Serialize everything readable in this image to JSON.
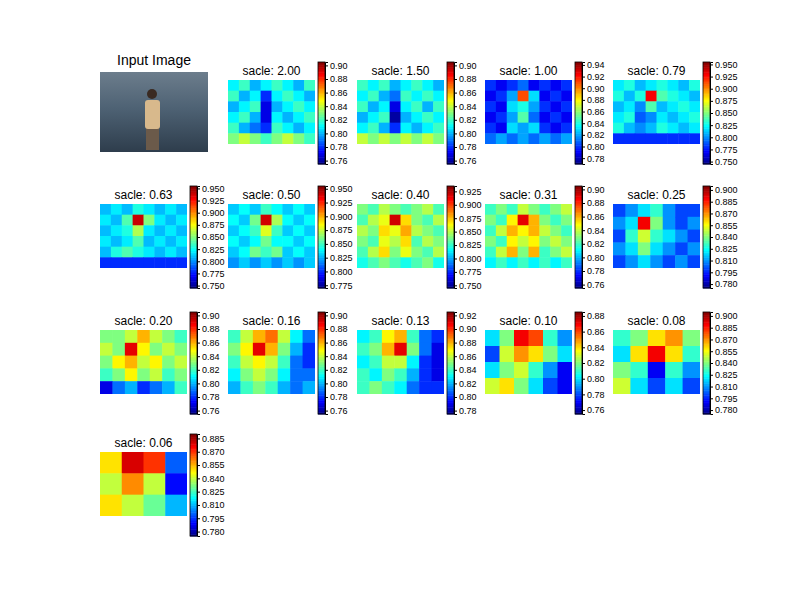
{
  "chart_data": [
    {
      "type": "image",
      "title": "Input Image"
    },
    {
      "type": "heatmap",
      "title": "sacle: 2.00",
      "cells": [
        [
          0.81,
          0.82,
          0.8,
          0.81,
          0.82,
          0.81,
          0.8,
          0.82
        ],
        [
          0.82,
          0.8,
          0.81,
          0.78,
          0.81,
          0.82,
          0.81,
          0.8
        ],
        [
          0.8,
          0.81,
          0.82,
          0.77,
          0.8,
          0.81,
          0.82,
          0.81
        ],
        [
          0.81,
          0.82,
          0.8,
          0.77,
          0.81,
          0.8,
          0.81,
          0.82
        ],
        [
          0.82,
          0.8,
          0.79,
          0.78,
          0.82,
          0.81,
          0.8,
          0.81
        ],
        [
          0.83,
          0.84,
          0.83,
          0.82,
          0.83,
          0.84,
          0.83,
          0.82
        ]
      ],
      "zlim": [
        0.755,
        0.905
      ],
      "zticks": [
        0.76,
        0.78,
        {
          "value": 0.8,
          "label": "0.80"
        },
        0.82,
        0.84,
        0.86,
        0.88,
        {
          "value": 0.9,
          "label": "0.90"
        }
      ]
    },
    {
      "type": "heatmap",
      "title": "sacle: 1.50",
      "cells": [
        [
          0.82,
          0.81,
          0.82,
          0.8,
          0.81,
          0.82,
          0.81,
          0.8
        ],
        [
          0.81,
          0.82,
          0.8,
          0.79,
          0.82,
          0.81,
          0.82,
          0.81
        ],
        [
          0.82,
          0.8,
          0.81,
          0.77,
          0.81,
          0.82,
          0.8,
          0.82
        ],
        [
          0.8,
          0.81,
          0.82,
          0.76,
          0.8,
          0.81,
          0.82,
          0.81
        ],
        [
          0.81,
          0.82,
          0.8,
          0.78,
          0.81,
          0.8,
          0.81,
          0.82
        ],
        [
          0.84,
          0.83,
          0.84,
          0.83,
          0.84,
          0.83,
          0.84,
          0.83
        ]
      ],
      "zlim": [
        0.755,
        0.905
      ],
      "zticks": [
        0.76,
        0.78,
        {
          "value": 0.8,
          "label": "0.80"
        },
        0.82,
        0.84,
        0.86,
        0.88,
        {
          "value": 0.9,
          "label": "0.90"
        }
      ]
    },
    {
      "type": "heatmap",
      "title": "sacle: 1.00",
      "cells": [
        [
          0.8,
          0.79,
          0.8,
          0.81,
          0.79,
          0.8,
          0.79,
          0.8
        ],
        [
          0.79,
          0.8,
          0.82,
          0.91,
          0.83,
          0.79,
          0.8,
          0.79
        ],
        [
          0.8,
          0.79,
          0.83,
          0.84,
          0.82,
          0.8,
          0.79,
          0.8
        ],
        [
          0.79,
          0.8,
          0.82,
          0.85,
          0.81,
          0.79,
          0.8,
          0.79
        ],
        [
          0.8,
          0.79,
          0.83,
          0.82,
          0.83,
          0.8,
          0.79,
          0.8
        ],
        [
          0.81,
          0.82,
          0.81,
          0.82,
          0.81,
          0.82,
          0.81,
          0.82
        ]
      ],
      "zlim": [
        0.77,
        0.945
      ],
      "zticks": [
        0.78,
        {
          "value": 0.8,
          "label": "0.80"
        },
        0.82,
        0.84,
        0.86,
        0.88,
        {
          "value": 0.9,
          "label": "0.90"
        },
        0.92,
        0.94
      ]
    },
    {
      "type": "heatmap",
      "title": "sacle: 0.79",
      "cells": [
        [
          0.82,
          0.83,
          0.81,
          0.82,
          0.83,
          0.82,
          0.81,
          0.83
        ],
        [
          0.83,
          0.81,
          0.83,
          0.93,
          0.84,
          0.83,
          0.82,
          0.81
        ],
        [
          0.81,
          0.82,
          0.8,
          0.84,
          0.81,
          0.82,
          0.83,
          0.82
        ],
        [
          0.82,
          0.83,
          0.79,
          0.8,
          0.82,
          0.81,
          0.82,
          0.83
        ],
        [
          0.83,
          0.81,
          0.8,
          0.81,
          0.83,
          0.82,
          0.81,
          0.82
        ],
        [
          0.78,
          0.78,
          0.78,
          0.78,
          0.78,
          0.78,
          0.78,
          0.78
        ]
      ],
      "zlim": [
        0.745,
        0.955
      ],
      "zticks": [
        {
          "value": 0.75,
          "label": "0.750"
        },
        0.775,
        {
          "value": 0.8,
          "label": "0.800"
        },
        0.825,
        {
          "value": 0.85,
          "label": "0.850"
        },
        0.875,
        {
          "value": 0.9,
          "label": "0.900"
        },
        0.925,
        {
          "value": 0.95,
          "label": "0.950"
        }
      ]
    },
    {
      "type": "heatmap",
      "title": "sacle: 0.63",
      "cells": [
        [
          0.81,
          0.82,
          0.81,
          0.83,
          0.82,
          0.81,
          0.82,
          0.81
        ],
        [
          0.82,
          0.81,
          0.84,
          0.94,
          0.85,
          0.82,
          0.81,
          0.82
        ],
        [
          0.81,
          0.82,
          0.83,
          0.86,
          0.82,
          0.81,
          0.82,
          0.81
        ],
        [
          0.82,
          0.81,
          0.82,
          0.84,
          0.81,
          0.82,
          0.81,
          0.82
        ],
        [
          0.81,
          0.83,
          0.84,
          0.83,
          0.82,
          0.81,
          0.82,
          0.81
        ],
        [
          0.78,
          0.78,
          0.78,
          0.78,
          0.78,
          0.78,
          0.78,
          0.78
        ]
      ],
      "zlim": [
        0.745,
        0.955
      ],
      "zticks": [
        {
          "value": 0.75,
          "label": "0.750"
        },
        0.775,
        {
          "value": 0.8,
          "label": "0.800"
        },
        0.825,
        {
          "value": 0.85,
          "label": "0.850"
        },
        0.875,
        {
          "value": 0.9,
          "label": "0.900"
        },
        0.925,
        {
          "value": 0.95,
          "label": "0.950"
        }
      ]
    },
    {
      "type": "heatmap",
      "title": "sacle: 0.50",
      "cells": [
        [
          0.83,
          0.84,
          0.83,
          0.85,
          0.84,
          0.83,
          0.84,
          0.83
        ],
        [
          0.84,
          0.83,
          0.86,
          0.94,
          0.87,
          0.84,
          0.83,
          0.84
        ],
        [
          0.83,
          0.84,
          0.85,
          0.88,
          0.85,
          0.83,
          0.84,
          0.83
        ],
        [
          0.84,
          0.83,
          0.84,
          0.86,
          0.84,
          0.84,
          0.83,
          0.84
        ],
        [
          0.83,
          0.84,
          0.86,
          0.85,
          0.86,
          0.83,
          0.84,
          0.83
        ],
        [
          0.82,
          0.83,
          0.82,
          0.83,
          0.82,
          0.83,
          0.82,
          0.83
        ]
      ],
      "zlim": [
        0.77,
        0.955
      ],
      "zticks": [
        0.775,
        {
          "value": 0.8,
          "label": "0.800"
        },
        0.825,
        {
          "value": 0.85,
          "label": "0.850"
        },
        0.875,
        {
          "value": 0.9,
          "label": "0.900"
        },
        0.925,
        {
          "value": 0.95,
          "label": "0.950"
        }
      ]
    },
    {
      "type": "heatmap",
      "title": "sacle: 0.40",
      "cells": [
        [
          0.84,
          0.83,
          0.85,
          0.84,
          0.83,
          0.84,
          0.85,
          0.83
        ],
        [
          0.83,
          0.85,
          0.86,
          0.92,
          0.87,
          0.84,
          0.83,
          0.85
        ],
        [
          0.85,
          0.84,
          0.87,
          0.86,
          0.88,
          0.85,
          0.84,
          0.83
        ],
        [
          0.84,
          0.83,
          0.86,
          0.85,
          0.87,
          0.83,
          0.85,
          0.84
        ],
        [
          0.83,
          0.85,
          0.87,
          0.84,
          0.86,
          0.84,
          0.83,
          0.85
        ],
        [
          0.82,
          0.83,
          0.84,
          0.83,
          0.82,
          0.83,
          0.84,
          0.82
        ]
      ],
      "zlim": [
        0.745,
        0.935
      ],
      "zticks": [
        {
          "value": 0.75,
          "label": "0.750"
        },
        0.775,
        {
          "value": 0.8,
          "label": "0.800"
        },
        0.825,
        {
          "value": 0.85,
          "label": "0.850"
        },
        0.875,
        {
          "value": 0.9,
          "label": "0.900"
        },
        0.925
      ]
    },
    {
      "type": "heatmap",
      "title": "sacle: 0.31",
      "cells": [
        [
          0.82,
          0.83,
          0.82,
          0.84,
          0.83,
          0.82,
          0.83,
          0.84
        ],
        [
          0.83,
          0.82,
          0.85,
          0.89,
          0.86,
          0.83,
          0.82,
          0.83
        ],
        [
          0.82,
          0.84,
          0.86,
          0.85,
          0.86,
          0.84,
          0.83,
          0.82
        ],
        [
          0.83,
          0.82,
          0.85,
          0.84,
          0.85,
          0.83,
          0.84,
          0.83
        ],
        [
          0.82,
          0.84,
          0.86,
          0.83,
          0.86,
          0.82,
          0.83,
          0.84
        ],
        [
          0.81,
          0.82,
          0.81,
          0.82,
          0.81,
          0.82,
          0.81,
          0.82
        ]
      ],
      "zlim": [
        0.755,
        0.905
      ],
      "zticks": [
        0.76,
        0.78,
        {
          "value": 0.8,
          "label": "0.80"
        },
        0.82,
        0.84,
        0.86,
        0.88,
        {
          "value": 0.9,
          "label": "0.90"
        }
      ]
    },
    {
      "type": "heatmap",
      "title": "sacle: 0.25",
      "cells": [
        [
          0.8,
          0.81,
          0.82,
          0.83,
          0.81,
          0.8,
          0.8
        ],
        [
          0.81,
          0.82,
          0.89,
          0.84,
          0.81,
          0.8,
          0.81
        ],
        [
          0.8,
          0.83,
          0.85,
          0.83,
          0.82,
          0.81,
          0.8
        ],
        [
          0.81,
          0.82,
          0.84,
          0.82,
          0.81,
          0.8,
          0.81
        ],
        [
          0.8,
          0.81,
          0.82,
          0.81,
          0.8,
          0.81,
          0.8
        ]
      ],
      "zlim": [
        0.775,
        0.905
      ],
      "zticks": [
        {
          "value": 0.78,
          "label": "0.780"
        },
        0.795,
        {
          "value": 0.81,
          "label": "0.810"
        },
        0.825,
        {
          "value": 0.84,
          "label": "0.840"
        },
        0.855,
        {
          "value": 0.87,
          "label": "0.870"
        },
        0.885,
        {
          "value": 0.9,
          "label": "0.900"
        }
      ]
    },
    {
      "type": "heatmap",
      "title": "sacle: 0.20",
      "cells": [
        [
          0.83,
          0.83,
          0.84,
          0.86,
          0.84,
          0.83,
          0.82
        ],
        [
          0.84,
          0.83,
          0.89,
          0.85,
          0.83,
          0.84,
          0.83
        ],
        [
          0.83,
          0.85,
          0.86,
          0.84,
          0.85,
          0.83,
          0.84
        ],
        [
          0.82,
          0.83,
          0.85,
          0.83,
          0.84,
          0.82,
          0.83
        ],
        [
          0.77,
          0.79,
          0.8,
          0.78,
          0.79,
          0.8,
          0.82
        ]
      ],
      "zlim": [
        0.755,
        0.905
      ],
      "zticks": [
        0.76,
        0.78,
        {
          "value": 0.8,
          "label": "0.80"
        },
        0.82,
        0.84,
        0.86,
        0.88,
        {
          "value": 0.9,
          "label": "0.90"
        }
      ]
    },
    {
      "type": "heatmap",
      "title": "sacle: 0.16",
      "cells": [
        [
          0.82,
          0.84,
          0.86,
          0.87,
          0.84,
          0.81,
          0.79
        ],
        [
          0.83,
          0.85,
          0.89,
          0.86,
          0.83,
          0.8,
          0.78
        ],
        [
          0.82,
          0.84,
          0.85,
          0.84,
          0.82,
          0.79,
          0.78
        ],
        [
          0.81,
          0.83,
          0.84,
          0.83,
          0.81,
          0.79,
          0.79
        ],
        [
          0.8,
          0.82,
          0.83,
          0.82,
          0.8,
          0.79,
          0.8
        ]
      ],
      "zlim": [
        0.755,
        0.905
      ],
      "zticks": [
        0.76,
        0.78,
        {
          "value": 0.8,
          "label": "0.80"
        },
        0.82,
        0.84,
        0.86,
        0.88,
        {
          "value": 0.9,
          "label": "0.90"
        }
      ]
    },
    {
      "type": "heatmap",
      "title": "sacle: 0.13",
      "cells": [
        [
          0.83,
          0.84,
          0.87,
          0.88,
          0.84,
          0.81,
          0.8
        ],
        [
          0.84,
          0.85,
          0.88,
          0.91,
          0.85,
          0.81,
          0.79
        ],
        [
          0.83,
          0.84,
          0.86,
          0.86,
          0.83,
          0.8,
          0.79
        ],
        [
          0.84,
          0.83,
          0.85,
          0.84,
          0.82,
          0.8,
          0.79
        ],
        [
          0.84,
          0.85,
          0.84,
          0.83,
          0.81,
          0.8,
          0.8
        ]
      ],
      "zlim": [
        0.775,
        0.925
      ],
      "zticks": [
        0.78,
        {
          "value": 0.8,
          "label": "0.80"
        },
        0.82,
        0.84,
        0.86,
        0.88,
        {
          "value": 0.9,
          "label": "0.90"
        },
        0.92
      ]
    },
    {
      "type": "heatmap",
      "title": "sacle: 0.10",
      "cells": [
        [
          0.8,
          0.82,
          0.87,
          0.86,
          0.81,
          0.79
        ],
        [
          0.78,
          0.83,
          0.85,
          0.84,
          0.82,
          0.8
        ],
        [
          0.8,
          0.82,
          0.83,
          0.81,
          0.79,
          0.77
        ],
        [
          0.83,
          0.84,
          0.82,
          0.8,
          0.78,
          0.77
        ]
      ],
      "zlim": [
        0.755,
        0.885
      ],
      "zticks": [
        0.76,
        0.78,
        {
          "value": 0.8,
          "label": "0.80"
        },
        0.82,
        0.84,
        0.86,
        0.88
      ]
    },
    {
      "type": "heatmap",
      "title": "sacle: 0.08",
      "cells": [
        [
          0.83,
          0.84,
          0.86,
          0.87,
          0.84
        ],
        [
          0.82,
          0.86,
          0.89,
          0.86,
          0.83
        ],
        [
          0.84,
          0.83,
          0.79,
          0.83,
          0.81
        ],
        [
          0.85,
          0.82,
          0.8,
          0.82,
          0.8
        ]
      ],
      "zlim": [
        0.775,
        0.905
      ],
      "zticks": [
        {
          "value": 0.78,
          "label": "0.780"
        },
        0.795,
        {
          "value": 0.81,
          "label": "0.810"
        },
        0.825,
        {
          "value": 0.84,
          "label": "0.840"
        },
        0.855,
        {
          "value": 0.87,
          "label": "0.870"
        },
        0.885,
        {
          "value": 0.9,
          "label": "0.900"
        }
      ]
    },
    {
      "type": "heatmap",
      "title": "sacle: 0.06",
      "cells": [
        [
          0.85,
          0.88,
          0.87,
          0.8
        ],
        [
          0.84,
          0.86,
          0.84,
          0.79
        ],
        [
          0.85,
          0.84,
          0.83,
          0.81
        ]
      ],
      "zlim": [
        0.775,
        0.89
      ],
      "zticks": [
        {
          "value": 0.78,
          "label": "0.780"
        },
        0.795,
        {
          "value": 0.81,
          "label": "0.810"
        },
        0.825,
        {
          "value": 0.84,
          "label": "0.840"
        },
        0.855,
        {
          "value": 0.87,
          "label": "0.870"
        },
        0.885
      ]
    }
  ]
}
